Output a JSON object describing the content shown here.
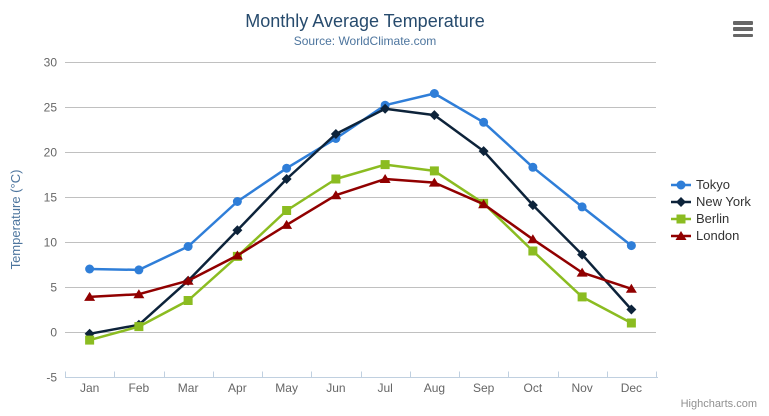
{
  "header": {
    "title": "Monthly Average Temperature",
    "subtitle": "Source: WorldClimate.com"
  },
  "export_menu": {
    "icon": "hamburger-menu-icon"
  },
  "credits": {
    "label": "Highcharts.com"
  },
  "colors": {
    "background": "#ffffff",
    "title": "#274b6d",
    "subtitle": "#4d759e",
    "axis_label": "#666666",
    "axis_title": "#4d759e",
    "grid_line": "#c0c0c0",
    "axis_line": "#c0d0e0",
    "legend_text": "#333333",
    "credits_text": "#909090",
    "menu_icon": "#666666"
  },
  "chart_data": {
    "type": "line",
    "title": "Monthly Average Temperature",
    "subtitle": "Source: WorldClimate.com",
    "categories": [
      "Jan",
      "Feb",
      "Mar",
      "Apr",
      "May",
      "Jun",
      "Jul",
      "Aug",
      "Sep",
      "Oct",
      "Nov",
      "Dec"
    ],
    "xlabel": "",
    "ylabel": "Temperature (°C)",
    "ylim": [
      -5,
      30
    ],
    "yticks": [
      30,
      25,
      20,
      15,
      10,
      5,
      0,
      -5
    ],
    "grid": true,
    "legend_position": "right",
    "series": [
      {
        "name": "Tokyo",
        "color": "#2f7ed8",
        "marker": "circle",
        "values": [
          7.0,
          6.9,
          9.5,
          14.5,
          18.2,
          21.5,
          25.2,
          26.5,
          23.3,
          18.3,
          13.9,
          9.6
        ]
      },
      {
        "name": "New York",
        "color": "#0d233a",
        "marker": "diamond",
        "values": [
          -0.2,
          0.8,
          5.7,
          11.3,
          17.0,
          22.0,
          24.8,
          24.1,
          20.1,
          14.1,
          8.6,
          2.5
        ]
      },
      {
        "name": "Berlin",
        "color": "#8bbc21",
        "marker": "square",
        "values": [
          -0.9,
          0.6,
          3.5,
          8.4,
          13.5,
          17.0,
          18.6,
          17.9,
          14.3,
          9.0,
          3.9,
          1.0
        ]
      },
      {
        "name": "London",
        "color": "#910000",
        "marker": "triangle",
        "values": [
          3.9,
          4.2,
          5.7,
          8.5,
          11.9,
          15.2,
          17.0,
          16.6,
          14.2,
          10.3,
          6.6,
          4.8
        ]
      }
    ]
  }
}
